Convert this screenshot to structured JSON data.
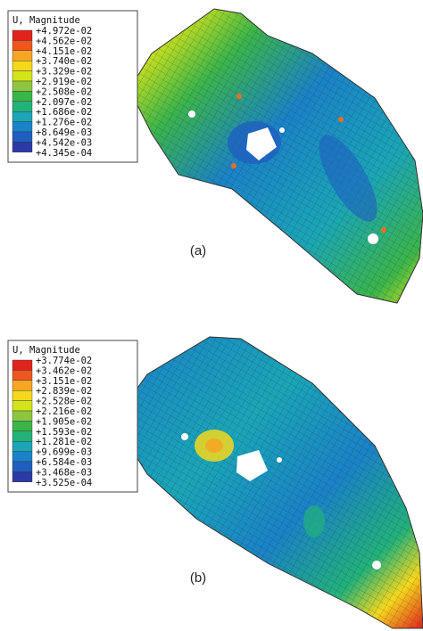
{
  "figures": [
    {
      "legend": {
        "title": "U, Magnitude",
        "labels": [
          "+4.972e-02",
          "+4.562e-02",
          "+4.151e-02",
          "+3.740e-02",
          "+3.329e-02",
          "+2.919e-02",
          "+2.508e-02",
          "+2.097e-02",
          "+1.686e-02",
          "+1.276e-02",
          "+8.649e-03",
          "+4.542e-03",
          "+4.345e-04"
        ]
      },
      "caption": "(a)"
    },
    {
      "legend": {
        "title": "U, Magnitude",
        "labels": [
          "+3.774e-02",
          "+3.462e-02",
          "+3.151e-02",
          "+2.839e-02",
          "+2.528e-02",
          "+2.216e-02",
          "+1.905e-02",
          "+1.593e-02",
          "+1.281e-02",
          "+9.699e-03",
          "+6.584e-03",
          "+3.468e-03",
          "+3.525e-04"
        ]
      },
      "caption": "(b)"
    }
  ]
}
